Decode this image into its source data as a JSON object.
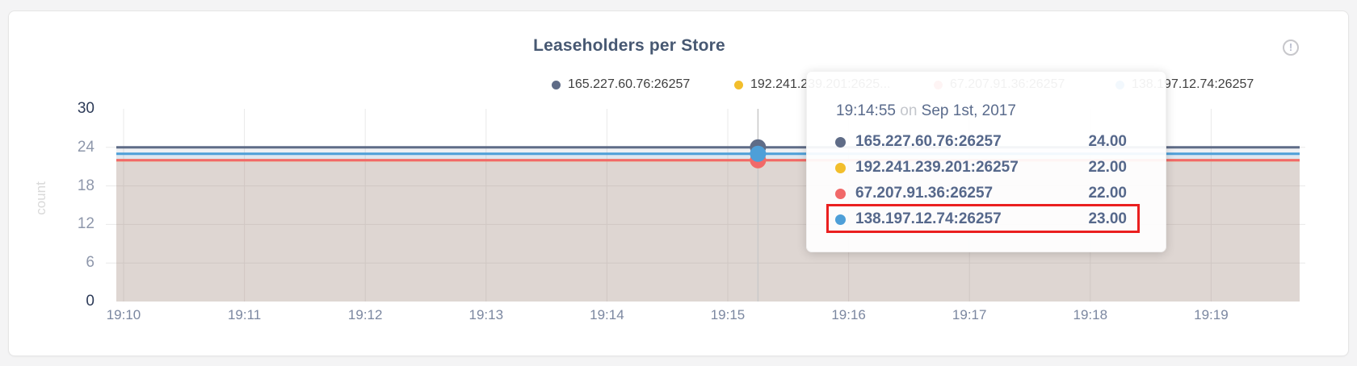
{
  "card": {
    "info_icon": {
      "glyph": "!"
    }
  },
  "chart_data": {
    "type": "area",
    "title": "Leaseholders per Store",
    "ylabel": "count",
    "ylim": [
      0,
      30
    ],
    "y_ticks": [
      "0",
      "6",
      "12",
      "18",
      "24",
      "30"
    ],
    "x_ticks": [
      "19:10",
      "19:11",
      "19:12",
      "19:13",
      "19:14",
      "19:15",
      "19:16",
      "19:17",
      "19:18",
      "19:19"
    ],
    "grid": true,
    "legend_position": "top",
    "series": [
      {
        "name": "165.227.60.76:26257",
        "legend_label": "165.227.60.76:26257",
        "color": "#5f6c87",
        "value": 24,
        "value_label": "24.00"
      },
      {
        "name": "192.241.239.201:26257",
        "legend_label": "192.241.239.201:2625...",
        "color": "#f2be2c",
        "value": 22,
        "value_label": "22.00"
      },
      {
        "name": "67.207.91.36:26257",
        "legend_label": "67.207.91.36:26257",
        "color": "#f16969",
        "value": 22,
        "value_label": "22.00"
      },
      {
        "name": "138.197.12.74:26257",
        "legend_label": "138.197.12.74:26257",
        "color": "#4e9fd8",
        "value": 23,
        "value_label": "23.00"
      }
    ],
    "hover": {
      "time": "19:14:55",
      "connector": "on",
      "date": "Sep 1st, 2017",
      "x_minutes_from_first_tick": 5.25,
      "highlighted_series_index": 3,
      "highlight_color": "#ea1f1f"
    }
  }
}
